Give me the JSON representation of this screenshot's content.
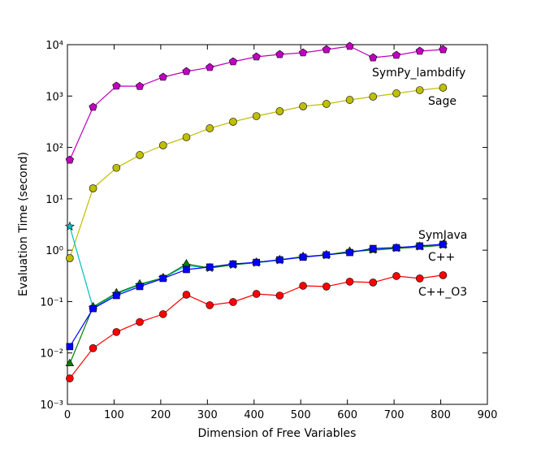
{
  "chart_data": {
    "type": "line",
    "x_label": "Dimension of Free Variables",
    "y_label": "Evaluation Time (second)",
    "log_y": true,
    "xlim": [
      0,
      900
    ],
    "xticks": [
      0,
      100,
      200,
      300,
      400,
      500,
      600,
      700,
      800,
      900
    ],
    "ylim": [
      0.001,
      10000
    ],
    "yticks": [
      {
        "value": 0.001,
        "label": "10⁻³"
      },
      {
        "value": 0.01,
        "label": "10⁻²"
      },
      {
        "value": 0.1,
        "label": "10⁻¹"
      },
      {
        "value": 1,
        "label": "10⁰"
      },
      {
        "value": 10,
        "label": "10¹"
      },
      {
        "value": 100,
        "label": "10²"
      },
      {
        "value": 1000,
        "label": "10³"
      },
      {
        "value": 10000,
        "label": "10⁴"
      }
    ],
    "x": [
      5,
      55,
      105,
      155,
      205,
      255,
      305,
      355,
      405,
      455,
      505,
      555,
      605,
      655,
      705,
      755,
      805
    ],
    "series": [
      {
        "name": "SymPy_lambdify",
        "color": "#bf00bf",
        "marker": "pentagon",
        "values": [
          57,
          608,
          1565,
          1550,
          2335,
          3010,
          3610,
          4660,
          5800,
          6460,
          6950,
          8030,
          9300,
          5580,
          6240,
          7480,
          8030
        ]
      },
      {
        "name": "Sage",
        "color": "#bfbf00",
        "marker": "circle",
        "values": [
          0.7,
          16,
          40,
          71,
          110,
          158,
          236,
          316,
          407,
          507,
          631,
          703,
          843,
          975,
          1128,
          1303,
          1455
        ]
      },
      {
        "name": "SymJava",
        "color": "#00bfbf",
        "marker": "star",
        "values": [
          2.9,
          0.075,
          0.14,
          0.21,
          0.29,
          0.5,
          0.45,
          0.52,
          0.57,
          0.64,
          0.74,
          0.8,
          0.92,
          1.02,
          1.1,
          1.18,
          1.27
        ]
      },
      {
        "color": "#008000",
        "marker": "triangle",
        "values": [
          0.0062,
          0.079,
          0.147,
          0.219,
          0.29,
          0.54,
          0.45,
          0.52,
          0.58,
          0.65,
          0.75,
          0.81,
          0.95,
          1.0,
          1.08,
          1.15,
          1.24
        ]
      },
      {
        "name": "C++",
        "color": "#0000ff",
        "marker": "square",
        "values": [
          0.0133,
          0.073,
          0.131,
          0.196,
          0.282,
          0.42,
          0.47,
          0.54,
          0.58,
          0.65,
          0.73,
          0.81,
          0.9,
          1.08,
          1.12,
          1.21,
          1.3
        ]
      },
      {
        "name": "C++_O3",
        "color": "#ff0000",
        "marker": "circle",
        "values": [
          0.0032,
          0.0124,
          0.0256,
          0.04,
          0.057,
          0.136,
          0.085,
          0.098,
          0.141,
          0.131,
          0.203,
          0.196,
          0.244,
          0.235,
          0.314,
          0.282,
          0.326
        ]
      }
    ]
  }
}
